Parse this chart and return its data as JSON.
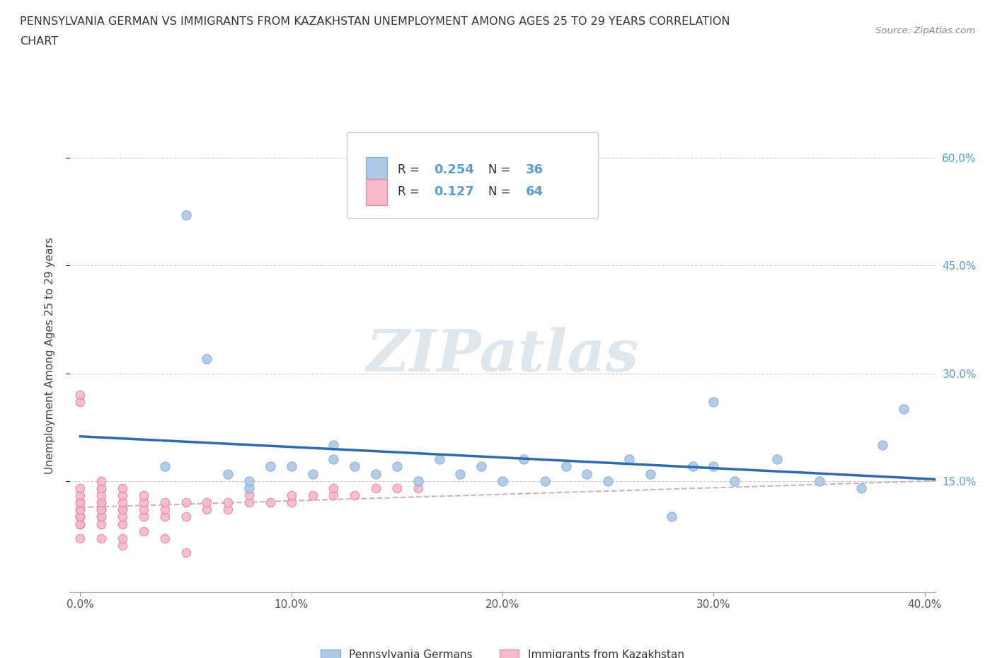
{
  "title_line1": "PENNSYLVANIA GERMAN VS IMMIGRANTS FROM KAZAKHSTAN UNEMPLOYMENT AMONG AGES 25 TO 29 YEARS CORRELATION",
  "title_line2": "CHART",
  "source_text": "Source: ZipAtlas.com",
  "ylabel": "Unemployment Among Ages 25 to 29 years",
  "watermark": "ZIPatlas",
  "xlim": [
    -0.005,
    0.405
  ],
  "ylim": [
    -0.005,
    0.655
  ],
  "xtick_vals": [
    0.0,
    0.1,
    0.2,
    0.3,
    0.4
  ],
  "xtick_labels": [
    "0.0%",
    "10.0%",
    "20.0%",
    "30.0%",
    "40.0%"
  ],
  "ytick_vals": [
    0.15,
    0.3,
    0.45,
    0.6
  ],
  "ytick_labels": [
    "15.0%",
    "30.0%",
    "45.0%",
    "60.0%"
  ],
  "R_blue": 0.254,
  "N_blue": 36,
  "R_pink": 0.127,
  "N_pink": 64,
  "blue_color": "#aec6e8",
  "blue_edge_color": "#7bafd4",
  "pink_color": "#f4b8c8",
  "pink_edge_color": "#e8829a",
  "blue_line_color": "#2b6cb0",
  "pink_line_color": "#ccaaaa",
  "legend_label_blue": "Pennsylvania Germans",
  "legend_label_pink": "Immigrants from Kazakhstan",
  "blue_scatter_x": [
    0.04,
    0.06,
    0.07,
    0.08,
    0.09,
    0.1,
    0.11,
    0.12,
    0.13,
    0.14,
    0.15,
    0.16,
    0.17,
    0.18,
    0.19,
    0.2,
    0.21,
    0.22,
    0.23,
    0.24,
    0.25,
    0.26,
    0.27,
    0.28,
    0.29,
    0.3,
    0.31,
    0.33,
    0.35,
    0.37,
    0.38,
    0.39,
    0.05,
    0.08,
    0.12,
    0.3
  ],
  "blue_scatter_y": [
    0.17,
    0.32,
    0.16,
    0.14,
    0.17,
    0.17,
    0.16,
    0.18,
    0.17,
    0.16,
    0.17,
    0.15,
    0.18,
    0.16,
    0.17,
    0.15,
    0.18,
    0.15,
    0.17,
    0.16,
    0.15,
    0.18,
    0.16,
    0.1,
    0.17,
    0.17,
    0.15,
    0.18,
    0.15,
    0.14,
    0.2,
    0.25,
    0.52,
    0.15,
    0.2,
    0.26
  ],
  "pink_scatter_x": [
    0.0,
    0.0,
    0.0,
    0.0,
    0.0,
    0.0,
    0.0,
    0.0,
    0.0,
    0.0,
    0.0,
    0.0,
    0.0,
    0.0,
    0.01,
    0.01,
    0.01,
    0.01,
    0.01,
    0.01,
    0.01,
    0.01,
    0.01,
    0.01,
    0.01,
    0.02,
    0.02,
    0.02,
    0.02,
    0.02,
    0.02,
    0.02,
    0.03,
    0.03,
    0.03,
    0.03,
    0.04,
    0.04,
    0.04,
    0.05,
    0.05,
    0.06,
    0.06,
    0.07,
    0.07,
    0.08,
    0.08,
    0.09,
    0.1,
    0.1,
    0.11,
    0.12,
    0.12,
    0.13,
    0.14,
    0.15,
    0.16,
    0.02,
    0.04,
    0.05,
    0.0,
    0.01,
    0.02,
    0.03
  ],
  "pink_scatter_y": [
    0.09,
    0.09,
    0.1,
    0.1,
    0.1,
    0.1,
    0.11,
    0.11,
    0.12,
    0.12,
    0.13,
    0.14,
    0.26,
    0.27,
    0.09,
    0.1,
    0.1,
    0.11,
    0.11,
    0.12,
    0.12,
    0.13,
    0.14,
    0.14,
    0.15,
    0.09,
    0.1,
    0.11,
    0.11,
    0.12,
    0.13,
    0.14,
    0.1,
    0.11,
    0.12,
    0.13,
    0.1,
    0.11,
    0.12,
    0.1,
    0.12,
    0.11,
    0.12,
    0.11,
    0.12,
    0.12,
    0.13,
    0.12,
    0.12,
    0.13,
    0.13,
    0.13,
    0.14,
    0.13,
    0.14,
    0.14,
    0.14,
    0.06,
    0.07,
    0.05,
    0.07,
    0.07,
    0.07,
    0.08
  ]
}
